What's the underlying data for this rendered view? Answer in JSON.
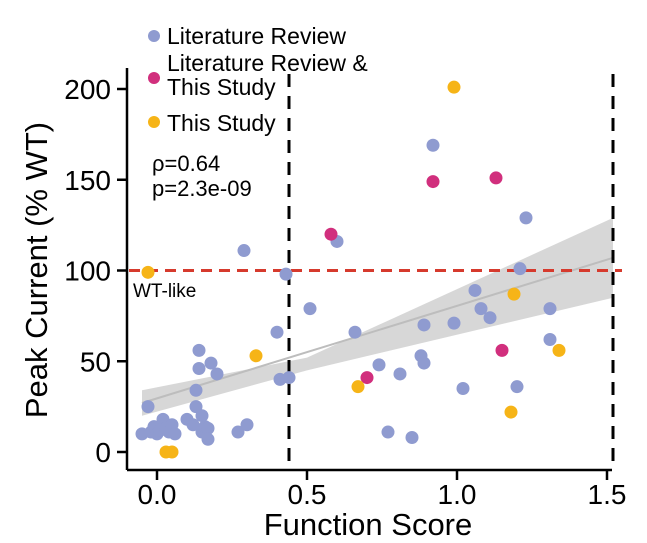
{
  "chart_data": {
    "type": "scatter",
    "title": "",
    "xlabel": "Function Score",
    "ylabel": "Peak Current (% WT)",
    "xlim": [
      -0.1,
      1.58
    ],
    "ylim": [
      -8,
      210
    ],
    "xticks": [
      0.0,
      0.5,
      1.0,
      1.5
    ],
    "xtick_labels": [
      "0.0",
      "0.5",
      "1.0",
      "1.5"
    ],
    "yticks": [
      0,
      50,
      100,
      150,
      200
    ],
    "ytick_labels": [
      "0",
      "50",
      "100",
      "150",
      "200"
    ],
    "grid": false,
    "legend_position": "top-left",
    "legend": [
      {
        "label": "Literature Review",
        "color": "#8f9bd0"
      },
      {
        "label": "Literature Review &",
        "label2": "This Study",
        "color": "#d12f7d"
      },
      {
        "label": "This Study",
        "color": "#f6b417"
      }
    ],
    "stats": {
      "rho": "ρ=0.64",
      "p": "p=2.3e-09"
    },
    "reference_lines": {
      "horizontal": {
        "y": 100,
        "color": "#d63a2d",
        "label": "WT-like"
      },
      "vertical": [
        {
          "x": 0.44,
          "color": "#000000"
        },
        {
          "x": 1.52,
          "color": "#000000"
        }
      ]
    },
    "regression": {
      "x_range": [
        -0.05,
        1.52
      ],
      "line": [
        [
          -0.05,
          27
        ],
        [
          1.52,
          107
        ]
      ],
      "band_lower": [
        [
          -0.05,
          20
        ],
        [
          0.5,
          45
        ],
        [
          1.52,
          85
        ]
      ],
      "band_upper": [
        [
          -0.05,
          34
        ],
        [
          0.5,
          52
        ],
        [
          1.52,
          129
        ]
      ],
      "band_color": "#d3d3d3"
    },
    "series": [
      {
        "name": "Literature Review",
        "color": "#8f9bd0",
        "points": [
          [
            -0.05,
            10
          ],
          [
            -0.03,
            25
          ],
          [
            -0.02,
            11
          ],
          [
            -0.01,
            14
          ],
          [
            0.0,
            10
          ],
          [
            0.01,
            12
          ],
          [
            0.02,
            18
          ],
          [
            0.03,
            13
          ],
          [
            0.04,
            11
          ],
          [
            0.05,
            15
          ],
          [
            0.06,
            10
          ],
          [
            0.1,
            18
          ],
          [
            0.12,
            15
          ],
          [
            0.13,
            25
          ],
          [
            0.13,
            34
          ],
          [
            0.14,
            46
          ],
          [
            0.14,
            56
          ],
          [
            0.15,
            11
          ],
          [
            0.15,
            20
          ],
          [
            0.16,
            14
          ],
          [
            0.17,
            13
          ],
          [
            0.17,
            7
          ],
          [
            0.18,
            49
          ],
          [
            0.2,
            43
          ],
          [
            0.27,
            11
          ],
          [
            0.29,
            111
          ],
          [
            0.3,
            15
          ],
          [
            0.4,
            66
          ],
          [
            0.41,
            40
          ],
          [
            0.43,
            98
          ],
          [
            0.44,
            41
          ],
          [
            0.51,
            79
          ],
          [
            0.6,
            116
          ],
          [
            0.66,
            66
          ],
          [
            0.74,
            48
          ],
          [
            0.77,
            11
          ],
          [
            0.81,
            43
          ],
          [
            0.85,
            8
          ],
          [
            0.88,
            53
          ],
          [
            0.89,
            49
          ],
          [
            0.89,
            70
          ],
          [
            0.92,
            169
          ],
          [
            0.99,
            71
          ],
          [
            1.02,
            35
          ],
          [
            1.06,
            89
          ],
          [
            1.08,
            79
          ],
          [
            1.11,
            74
          ],
          [
            1.2,
            36
          ],
          [
            1.21,
            101
          ],
          [
            1.23,
            129
          ],
          [
            1.31,
            79
          ],
          [
            1.31,
            62
          ]
        ]
      },
      {
        "name": "Literature Review & This Study",
        "color": "#d12f7d",
        "points": [
          [
            0.58,
            120
          ],
          [
            0.7,
            41
          ],
          [
            0.92,
            149
          ],
          [
            1.13,
            151
          ],
          [
            1.15,
            56
          ]
        ]
      },
      {
        "name": "This Study",
        "color": "#f6b417",
        "points": [
          [
            -0.03,
            99
          ],
          [
            0.03,
            0
          ],
          [
            0.05,
            0
          ],
          [
            0.33,
            53
          ],
          [
            0.67,
            36
          ],
          [
            0.99,
            201
          ],
          [
            1.18,
            22
          ],
          [
            1.19,
            87
          ],
          [
            1.34,
            56
          ]
        ]
      }
    ]
  }
}
